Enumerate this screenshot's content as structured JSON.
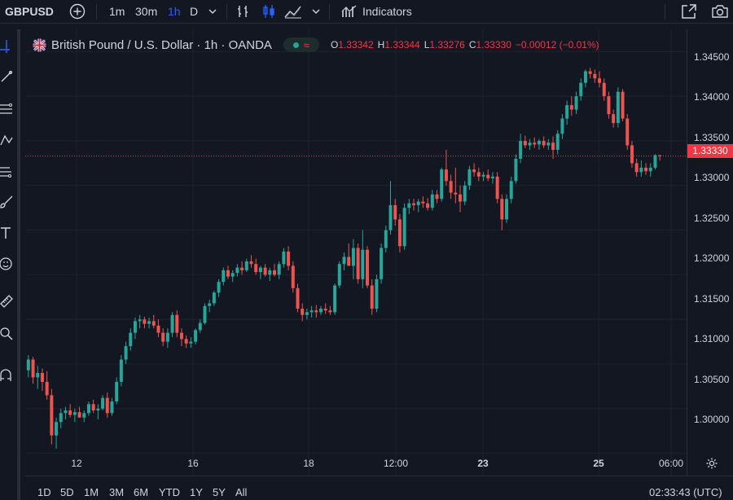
{
  "toolbar": {
    "symbol": "GBPUSD",
    "intervals": [
      "1m",
      "30m",
      "1h",
      "D"
    ],
    "active_interval": "1h",
    "indicators_label": "Indicators"
  },
  "legend": {
    "title": "British Pound / U.S. Dollar · 1h · OANDA",
    "pill_glyph": "≈",
    "open_key": "O",
    "open_val": "1.33342",
    "high_key": "H",
    "high_val": "1.33344",
    "low_key": "L",
    "low_val": "1.33276",
    "close_key": "C",
    "close_val": "1.33330",
    "change": "−0.00012 (−0.01%)"
  },
  "price_axis": {
    "labels": [
      "1.34500",
      "1.34000",
      "1.33500",
      "1.33000",
      "1.32500",
      "1.32000",
      "1.31500",
      "1.31000",
      "1.30500",
      "1.30000"
    ],
    "current_price": "1.33330"
  },
  "time_axis": {
    "labels": [
      "12",
      "16",
      "18",
      "12:00",
      "23",
      "25",
      "06:00"
    ]
  },
  "range_buttons": [
    "1D",
    "5D",
    "1M",
    "3M",
    "6M",
    "YTD",
    "1Y",
    "5Y",
    "All"
  ],
  "clock": "02:33:43 (UTC)",
  "colors": {
    "up": "#26a69a",
    "down": "#ef5350",
    "accent": "#2962ff",
    "price_tag": "#f23645"
  },
  "chart_data": {
    "type": "candlestick",
    "symbol": "GBPUSD",
    "ylim": [
      1.2975,
      1.3475
    ],
    "current_price": 1.3333,
    "ohlc": [
      [
        1.3093,
        1.311,
        1.3085,
        1.3105
      ],
      [
        1.3105,
        1.3108,
        1.3078,
        1.3085
      ],
      [
        1.3085,
        1.3098,
        1.3072,
        1.309
      ],
      [
        1.309,
        1.3095,
        1.307,
        1.308
      ],
      [
        1.308,
        1.3092,
        1.306,
        1.3065
      ],
      [
        1.3065,
        1.3072,
        1.301,
        1.302
      ],
      [
        1.302,
        1.304,
        1.3005,
        1.3035
      ],
      [
        1.3035,
        1.305,
        1.3028,
        1.3045
      ],
      [
        1.3045,
        1.3052,
        1.3038,
        1.3048
      ],
      [
        1.3048,
        1.3055,
        1.304,
        1.3043
      ],
      [
        1.3043,
        1.305,
        1.3035,
        1.3046
      ],
      [
        1.3046,
        1.3052,
        1.304,
        1.304
      ],
      [
        1.304,
        1.3048,
        1.3035,
        1.3045
      ],
      [
        1.3045,
        1.3058,
        1.3042,
        1.3055
      ],
      [
        1.3055,
        1.306,
        1.3045,
        1.3048
      ],
      [
        1.3048,
        1.3055,
        1.3038,
        1.305
      ],
      [
        1.305,
        1.3065,
        1.3048,
        1.3062
      ],
      [
        1.3062,
        1.3068,
        1.304,
        1.3045
      ],
      [
        1.3045,
        1.3062,
        1.3042,
        1.3058
      ],
      [
        1.3058,
        1.3085,
        1.3055,
        1.308
      ],
      [
        1.308,
        1.311,
        1.3075,
        1.3105
      ],
      [
        1.3105,
        1.3125,
        1.31,
        1.312
      ],
      [
        1.312,
        1.314,
        1.3115,
        1.3135
      ],
      [
        1.3135,
        1.3152,
        1.3128,
        1.3148
      ],
      [
        1.3148,
        1.3155,
        1.314,
        1.315
      ],
      [
        1.315,
        1.3153,
        1.314,
        1.3145
      ],
      [
        1.3145,
        1.3152,
        1.314,
        1.3148
      ],
      [
        1.3148,
        1.3155,
        1.314,
        1.3143
      ],
      [
        1.3143,
        1.315,
        1.313,
        1.3135
      ],
      [
        1.3135,
        1.314,
        1.312,
        1.3125
      ],
      [
        1.3125,
        1.314,
        1.3118,
        1.3135
      ],
      [
        1.3135,
        1.3158,
        1.313,
        1.3155
      ],
      [
        1.3155,
        1.316,
        1.313,
        1.3135
      ],
      [
        1.3135,
        1.314,
        1.312,
        1.3128
      ],
      [
        1.3128,
        1.3132,
        1.3118,
        1.3123
      ],
      [
        1.3123,
        1.313,
        1.3118,
        1.3125
      ],
      [
        1.3125,
        1.314,
        1.3122,
        1.3138
      ],
      [
        1.3138,
        1.315,
        1.3135,
        1.3146
      ],
      [
        1.3146,
        1.3168,
        1.3144,
        1.3165
      ],
      [
        1.3165,
        1.3172,
        1.3158,
        1.3168
      ],
      [
        1.3168,
        1.3182,
        1.3165,
        1.318
      ],
      [
        1.318,
        1.3195,
        1.3175,
        1.3192
      ],
      [
        1.3192,
        1.3208,
        1.3188,
        1.3205
      ],
      [
        1.3205,
        1.321,
        1.3195,
        1.3198
      ],
      [
        1.3198,
        1.3205,
        1.3192,
        1.3202
      ],
      [
        1.3202,
        1.3212,
        1.3198,
        1.3208
      ],
      [
        1.3208,
        1.3215,
        1.32,
        1.3205
      ],
      [
        1.3205,
        1.3218,
        1.3203,
        1.3215
      ],
      [
        1.3215,
        1.3222,
        1.3208,
        1.3212
      ],
      [
        1.3212,
        1.3218,
        1.32,
        1.3203
      ],
      [
        1.3203,
        1.321,
        1.3195,
        1.3208
      ],
      [
        1.3208,
        1.3212,
        1.3198,
        1.32
      ],
      [
        1.32,
        1.3208,
        1.3193,
        1.3205
      ],
      [
        1.3205,
        1.3212,
        1.3198,
        1.32
      ],
      [
        1.32,
        1.3215,
        1.3195,
        1.3212
      ],
      [
        1.3212,
        1.323,
        1.3208,
        1.3226
      ],
      [
        1.3226,
        1.3232,
        1.3205,
        1.321
      ],
      [
        1.321,
        1.3215,
        1.318,
        1.3185
      ],
      [
        1.3185,
        1.319,
        1.3158,
        1.3162
      ],
      [
        1.3162,
        1.3168,
        1.3148,
        1.3155
      ],
      [
        1.3155,
        1.3162,
        1.315,
        1.3158
      ],
      [
        1.3158,
        1.3165,
        1.3152,
        1.316
      ],
      [
        1.316,
        1.3166,
        1.3152,
        1.3158
      ],
      [
        1.3158,
        1.3165,
        1.3155,
        1.3162
      ],
      [
        1.3162,
        1.3168,
        1.3156,
        1.316
      ],
      [
        1.316,
        1.3165,
        1.3155,
        1.3158
      ],
      [
        1.3158,
        1.319,
        1.3155,
        1.3188
      ],
      [
        1.3188,
        1.3215,
        1.3185,
        1.3212
      ],
      [
        1.3212,
        1.3225,
        1.3205,
        1.322
      ],
      [
        1.322,
        1.3235,
        1.3215,
        1.321
      ],
      [
        1.321,
        1.324,
        1.3195,
        1.323
      ],
      [
        1.323,
        1.3235,
        1.319,
        1.3195
      ],
      [
        1.3195,
        1.325,
        1.3185,
        1.3228
      ],
      [
        1.3228,
        1.3232,
        1.3185,
        1.3188
      ],
      [
        1.3188,
        1.3195,
        1.3155,
        1.3162
      ],
      [
        1.3162,
        1.32,
        1.3158,
        1.3195
      ],
      [
        1.3195,
        1.3235,
        1.319,
        1.323
      ],
      [
        1.323,
        1.3255,
        1.3225,
        1.325
      ],
      [
        1.325,
        1.3305,
        1.3245,
        1.3278
      ],
      [
        1.3278,
        1.3285,
        1.3255,
        1.3262
      ],
      [
        1.3262,
        1.3268,
        1.3225,
        1.3232
      ],
      [
        1.3232,
        1.328,
        1.3228,
        1.3275
      ],
      [
        1.3275,
        1.3285,
        1.3268,
        1.328
      ],
      [
        1.328,
        1.3285,
        1.3272,
        1.3278
      ],
      [
        1.3278,
        1.3285,
        1.327,
        1.3282
      ],
      [
        1.3282,
        1.3288,
        1.3275,
        1.328
      ],
      [
        1.328,
        1.3286,
        1.3272,
        1.3275
      ],
      [
        1.3275,
        1.3295,
        1.3272,
        1.329
      ],
      [
        1.329,
        1.3295,
        1.328,
        1.3285
      ],
      [
        1.3285,
        1.332,
        1.3282,
        1.3318
      ],
      [
        1.3318,
        1.334,
        1.33,
        1.3305
      ],
      [
        1.3305,
        1.3312,
        1.3285,
        1.3292
      ],
      [
        1.3292,
        1.332,
        1.328,
        1.329
      ],
      [
        1.329,
        1.33,
        1.327,
        1.3282
      ],
      [
        1.3282,
        1.3305,
        1.3278,
        1.33
      ],
      [
        1.33,
        1.3322,
        1.3295,
        1.3318
      ],
      [
        1.3318,
        1.3325,
        1.331,
        1.3315
      ],
      [
        1.3315,
        1.332,
        1.3305,
        1.331
      ],
      [
        1.331,
        1.3315,
        1.3305,
        1.3312
      ],
      [
        1.3312,
        1.3318,
        1.3305,
        1.3308
      ],
      [
        1.3308,
        1.3315,
        1.3302,
        1.331
      ],
      [
        1.331,
        1.3315,
        1.328,
        1.3285
      ],
      [
        1.3285,
        1.329,
        1.325,
        1.3262
      ],
      [
        1.3262,
        1.329,
        1.3258,
        1.3285
      ],
      [
        1.3285,
        1.331,
        1.328,
        1.3305
      ],
      [
        1.3305,
        1.3335,
        1.3302,
        1.333
      ],
      [
        1.333,
        1.3358,
        1.3325,
        1.335
      ],
      [
        1.335,
        1.3356,
        1.3342,
        1.3345
      ],
      [
        1.3345,
        1.3352,
        1.334,
        1.3348
      ],
      [
        1.3348,
        1.3354,
        1.3342,
        1.3346
      ],
      [
        1.3346,
        1.3352,
        1.334,
        1.335
      ],
      [
        1.335,
        1.3355,
        1.3342,
        1.3345
      ],
      [
        1.3345,
        1.3352,
        1.334,
        1.3348
      ],
      [
        1.3348,
        1.3355,
        1.333,
        1.334
      ],
      [
        1.334,
        1.3362,
        1.3335,
        1.3358
      ],
      [
        1.3358,
        1.338,
        1.3352,
        1.3375
      ],
      [
        1.3375,
        1.3395,
        1.3368,
        1.339
      ],
      [
        1.339,
        1.34,
        1.3378,
        1.3385
      ],
      [
        1.3385,
        1.3405,
        1.338,
        1.34
      ],
      [
        1.34,
        1.342,
        1.3395,
        1.3415
      ],
      [
        1.3415,
        1.343,
        1.341,
        1.3428
      ],
      [
        1.3428,
        1.3432,
        1.342,
        1.3425
      ],
      [
        1.3425,
        1.343,
        1.3415,
        1.342
      ],
      [
        1.342,
        1.3428,
        1.341,
        1.3415
      ],
      [
        1.3415,
        1.342,
        1.3395,
        1.34
      ],
      [
        1.34,
        1.3405,
        1.3375,
        1.338
      ],
      [
        1.338,
        1.3385,
        1.3365,
        1.337
      ],
      [
        1.337,
        1.341,
        1.3365,
        1.3405
      ],
      [
        1.3405,
        1.3408,
        1.3372,
        1.3375
      ],
      [
        1.3375,
        1.338,
        1.334,
        1.3345
      ],
      [
        1.3345,
        1.335,
        1.332,
        1.3325
      ],
      [
        1.3325,
        1.333,
        1.331,
        1.3315
      ],
      [
        1.3315,
        1.3328,
        1.331,
        1.332
      ],
      [
        1.332,
        1.3325,
        1.3312,
        1.3316
      ],
      [
        1.3316,
        1.3325,
        1.331,
        1.332
      ],
      [
        1.332,
        1.3335,
        1.3318,
        1.3334
      ],
      [
        1.3334,
        1.3334,
        1.3328,
        1.3333
      ]
    ]
  }
}
